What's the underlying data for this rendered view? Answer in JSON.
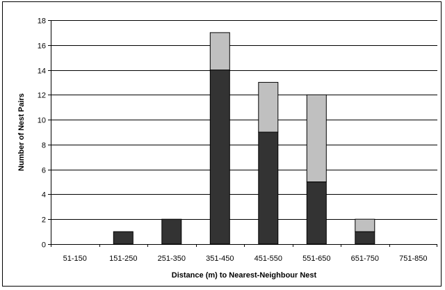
{
  "chart_data": {
    "type": "bar",
    "stacked": true,
    "title": "",
    "xlabel": "Distance (m) to Nearest-Neighbour Nest",
    "ylabel": "Number of Nest Pairs",
    "ylim": [
      0,
      18
    ],
    "yticks": [
      0,
      2,
      4,
      6,
      8,
      10,
      12,
      14,
      16,
      18
    ],
    "categories": [
      "51-150",
      "151-250",
      "251-350",
      "351-450",
      "451-550",
      "551-650",
      "651-750",
      "751-850"
    ],
    "series": [
      {
        "values": [
          0,
          1,
          2,
          14,
          9,
          5,
          1,
          0
        ],
        "color": "#333333"
      },
      {
        "values": [
          0,
          0,
          0,
          3,
          4,
          7,
          1,
          0
        ],
        "color": "#c0c0c0"
      }
    ],
    "grid": true,
    "legend": "none"
  }
}
